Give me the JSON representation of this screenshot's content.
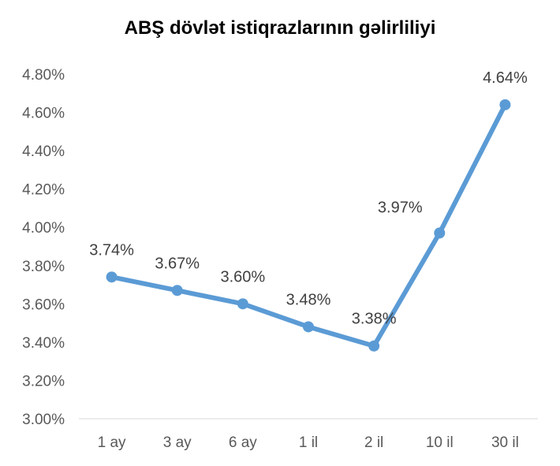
{
  "chart_data": {
    "type": "line",
    "title": "ABŞ dövlət istiqrazlarının gəlirliliyi",
    "xlabel": "",
    "ylabel": "",
    "categories": [
      "1 ay",
      "3 ay",
      "6 ay",
      "1 il",
      "2 il",
      "10 il",
      "30 il"
    ],
    "series": [
      {
        "values": [
          3.74,
          3.67,
          3.6,
          3.48,
          3.38,
          3.97,
          4.64
        ],
        "data_labels": [
          "3.74%",
          "3.67%",
          "3.60%",
          "3.48%",
          "3.38%",
          "3.97%",
          "4.64%"
        ],
        "color": "#5b9bd5"
      }
    ],
    "ylim": [
      3.0,
      4.8
    ],
    "yticks": [
      "3.00%",
      "3.20%",
      "3.40%",
      "3.60%",
      "3.80%",
      "4.00%",
      "4.20%",
      "4.40%",
      "4.60%",
      "4.80%"
    ],
    "grid": false,
    "legend": "none"
  }
}
